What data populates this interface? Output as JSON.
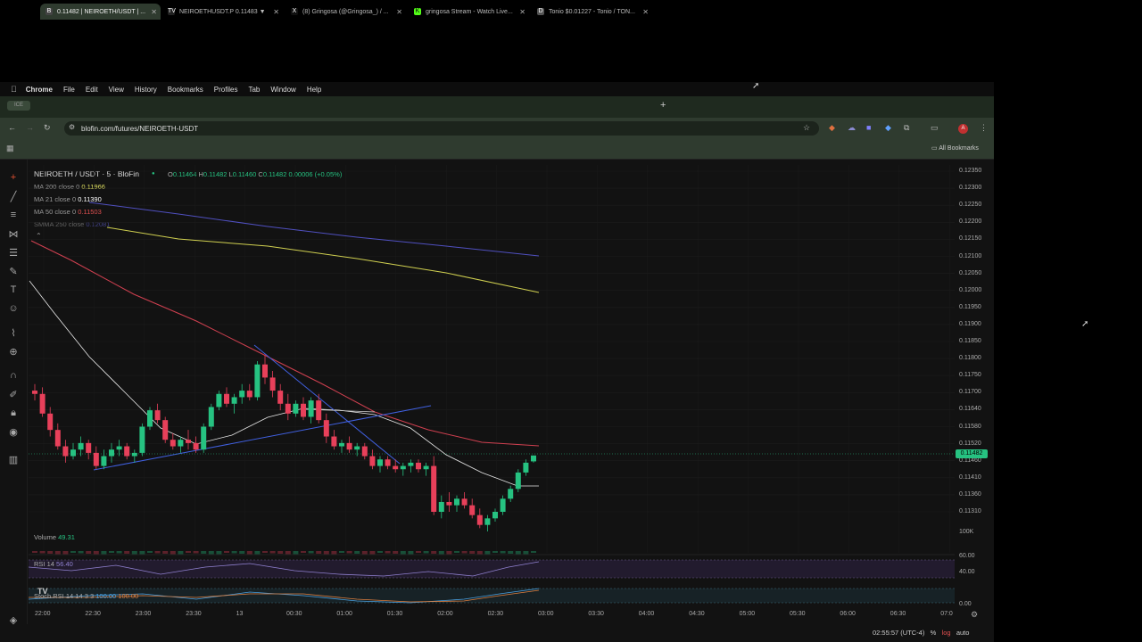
{
  "menubar": {
    "app": "Chrome",
    "items": [
      "File",
      "Edit",
      "View",
      "History",
      "Bookmarks",
      "Profiles",
      "Tab",
      "Window",
      "Help"
    ]
  },
  "tabs": [
    {
      "title": "0.11482 | NEIROETH/USDT | ...",
      "icon": "blofin-icon",
      "fav_color": "#444"
    },
    {
      "title": "NEIROETHUSDT.P 0.11483 ▼",
      "icon": "tradingview-icon",
      "fav_color": "#222"
    },
    {
      "title": "(8) Gringosa (@Gringosa_) / ...",
      "icon": "x-icon",
      "fav_color": "#111"
    },
    {
      "title": "gringosa Stream - Watch Live...",
      "icon": "kick-icon",
      "fav_color": "#53fc18"
    },
    {
      "title": "Tonio $0.01227 - Tonio / TON...",
      "icon": "dexscreener-icon",
      "fav_color": "#555"
    }
  ],
  "pinned_tab": "ICE",
  "address_bar": {
    "url": "blofin.com/futures/NEIROETH-USDT"
  },
  "bookmarks": {
    "all_label": "All Bookmarks"
  },
  "chart": {
    "symbol": "NEIROETH / USDT · 5 · BloFin",
    "ohlc": {
      "o_label": "O",
      "o": "0.11464",
      "h_label": "H",
      "h": "0.11482",
      "l_label": "L",
      "l": "0.11460",
      "c_label": "C",
      "c": "0.11482",
      "change": "0.00006 (+0.05%)"
    },
    "indicators": [
      {
        "label": "MA 200 close 0",
        "value": "0.11966",
        "color": "#e0e060"
      },
      {
        "label": "MA 21 close 0",
        "value": "0.11390",
        "color": "#ffffff"
      },
      {
        "label": "MA 50 close 0",
        "value": "0.11503",
        "color": "#e05050"
      },
      {
        "label": "SMMA 250 close",
        "value": "0.12081",
        "color": "#6060d0"
      }
    ],
    "current_price": "0.11482",
    "volume": {
      "label": "Volume",
      "value": "49.31"
    },
    "rsi": {
      "label": "RSI 14",
      "value": "56.40"
    },
    "stoch_rsi": {
      "label": "Stoch RSI 14 14 3 3",
      "k": "100.00",
      "d": "100.00"
    },
    "volume_axis": "100K",
    "rsi_axis": [
      "60.00",
      "40.00"
    ],
    "stoch_axis": "0.00",
    "timezone": "02:55:57 (UTC-4)",
    "footer": {
      "percent": "%",
      "log": "log",
      "auto": "auto"
    },
    "colors": {
      "up": "#26c281",
      "down": "#e8405a"
    }
  },
  "chart_data": {
    "type": "candlestick",
    "price_ticks": [
      "0.12350",
      "0.12300",
      "0.12250",
      "0.12200",
      "0.12150",
      "0.12100",
      "0.12050",
      "0.12000",
      "0.11950",
      "0.11900",
      "0.11850",
      "0.11800",
      "0.11750",
      "0.11700",
      "0.11640",
      "0.11580",
      "0.11520",
      "0.11460",
      "0.11410",
      "0.11360",
      "0.11310"
    ],
    "time_ticks": [
      "22:00",
      "22:30",
      "23:00",
      "23:30",
      "13",
      "00:30",
      "01:00",
      "01:30",
      "02:00",
      "02:30",
      "03:00",
      "03:30",
      "04:00",
      "04:30",
      "05:00",
      "05:30",
      "06:00",
      "06:30",
      "07:0"
    ],
    "candles": [
      [
        0.1168,
        0.117,
        0.1165,
        0.1167
      ],
      [
        0.1167,
        0.1169,
        0.116,
        0.1161
      ],
      [
        0.1161,
        0.1163,
        0.1154,
        0.1156
      ],
      [
        0.1156,
        0.1158,
        0.115,
        0.1151
      ],
      [
        0.1151,
        0.1153,
        0.1146,
        0.1148
      ],
      [
        0.1148,
        0.1152,
        0.1147,
        0.115
      ],
      [
        0.115,
        0.1154,
        0.1148,
        0.1152
      ],
      [
        0.1152,
        0.1153,
        0.1147,
        0.1149
      ],
      [
        0.1149,
        0.1151,
        0.1144,
        0.1145
      ],
      [
        0.1145,
        0.115,
        0.1144,
        0.1148
      ],
      [
        0.1148,
        0.1152,
        0.1146,
        0.115
      ],
      [
        0.115,
        0.1153,
        0.1148,
        0.1151
      ],
      [
        0.1151,
        0.1152,
        0.1147,
        0.1148
      ],
      [
        0.1148,
        0.115,
        0.1146,
        0.1149
      ],
      [
        0.1149,
        0.1158,
        0.1148,
        0.1157
      ],
      [
        0.1157,
        0.1163,
        0.1156,
        0.1162
      ],
      [
        0.1162,
        0.1164,
        0.1158,
        0.1159
      ],
      [
        0.1159,
        0.116,
        0.1152,
        0.1153
      ],
      [
        0.1153,
        0.1155,
        0.115,
        0.1151
      ],
      [
        0.1151,
        0.1154,
        0.1149,
        0.1153
      ],
      [
        0.1153,
        0.1156,
        0.115,
        0.1152
      ],
      [
        0.1152,
        0.1154,
        0.1149,
        0.115
      ],
      [
        0.115,
        0.1158,
        0.1149,
        0.1157
      ],
      [
        0.1157,
        0.1164,
        0.1156,
        0.1163
      ],
      [
        0.1163,
        0.1168,
        0.1162,
        0.1167
      ],
      [
        0.1167,
        0.1169,
        0.1163,
        0.1164
      ],
      [
        0.1164,
        0.1167,
        0.1161,
        0.1166
      ],
      [
        0.1166,
        0.117,
        0.1164,
        0.1168
      ],
      [
        0.1168,
        0.117,
        0.1165,
        0.1166
      ],
      [
        0.1166,
        0.1177,
        0.1165,
        0.1176
      ],
      [
        0.1176,
        0.1179,
        0.117,
        0.1172
      ],
      [
        0.1172,
        0.1174,
        0.1166,
        0.1168
      ],
      [
        0.1168,
        0.117,
        0.1162,
        0.1164
      ],
      [
        0.1164,
        0.1167,
        0.1159,
        0.1161
      ],
      [
        0.1161,
        0.1165,
        0.116,
        0.1164
      ],
      [
        0.1164,
        0.1166,
        0.1159,
        0.116
      ],
      [
        0.116,
        0.1166,
        0.1158,
        0.1165
      ],
      [
        0.1165,
        0.1167,
        0.1158,
        0.1159
      ],
      [
        0.1159,
        0.1161,
        0.1152,
        0.1154
      ],
      [
        0.1154,
        0.1156,
        0.115,
        0.1151
      ],
      [
        0.1151,
        0.1153,
        0.1149,
        0.1152
      ],
      [
        0.1152,
        0.1154,
        0.1149,
        0.115
      ],
      [
        0.115,
        0.1152,
        0.1148,
        0.1151
      ],
      [
        0.1151,
        0.1152,
        0.1147,
        0.1148
      ],
      [
        0.1148,
        0.115,
        0.1144,
        0.1145
      ],
      [
        0.1145,
        0.1148,
        0.1143,
        0.1147
      ],
      [
        0.1147,
        0.1148,
        0.1144,
        0.1145
      ],
      [
        0.1145,
        0.1147,
        0.1143,
        0.1144
      ],
      [
        0.1144,
        0.1146,
        0.1142,
        0.1145
      ],
      [
        0.1145,
        0.1147,
        0.1143,
        0.1146
      ],
      [
        0.1146,
        0.1147,
        0.1143,
        0.1144
      ],
      [
        0.1144,
        0.1146,
        0.1142,
        0.1145
      ],
      [
        0.1145,
        0.1148,
        0.113,
        0.1131
      ],
      [
        0.1131,
        0.1136,
        0.1129,
        0.1134
      ],
      [
        0.1134,
        0.1137,
        0.1131,
        0.1133
      ],
      [
        0.1133,
        0.1136,
        0.1131,
        0.1135
      ],
      [
        0.1135,
        0.1137,
        0.1132,
        0.1133
      ],
      [
        0.1133,
        0.1135,
        0.1129,
        0.113
      ],
      [
        0.113,
        0.1132,
        0.1126,
        0.1127
      ],
      [
        0.1127,
        0.113,
        0.1125,
        0.1129
      ],
      [
        0.1129,
        0.1132,
        0.1128,
        0.1131
      ],
      [
        0.1131,
        0.1136,
        0.113,
        0.1135
      ],
      [
        0.1135,
        0.1139,
        0.1134,
        0.1138
      ],
      [
        0.1138,
        0.1144,
        0.1137,
        0.1143
      ],
      [
        0.1143,
        0.1147,
        0.1142,
        0.1146
      ],
      [
        0.11464,
        0.11482,
        0.1146,
        0.11482
      ]
    ]
  }
}
